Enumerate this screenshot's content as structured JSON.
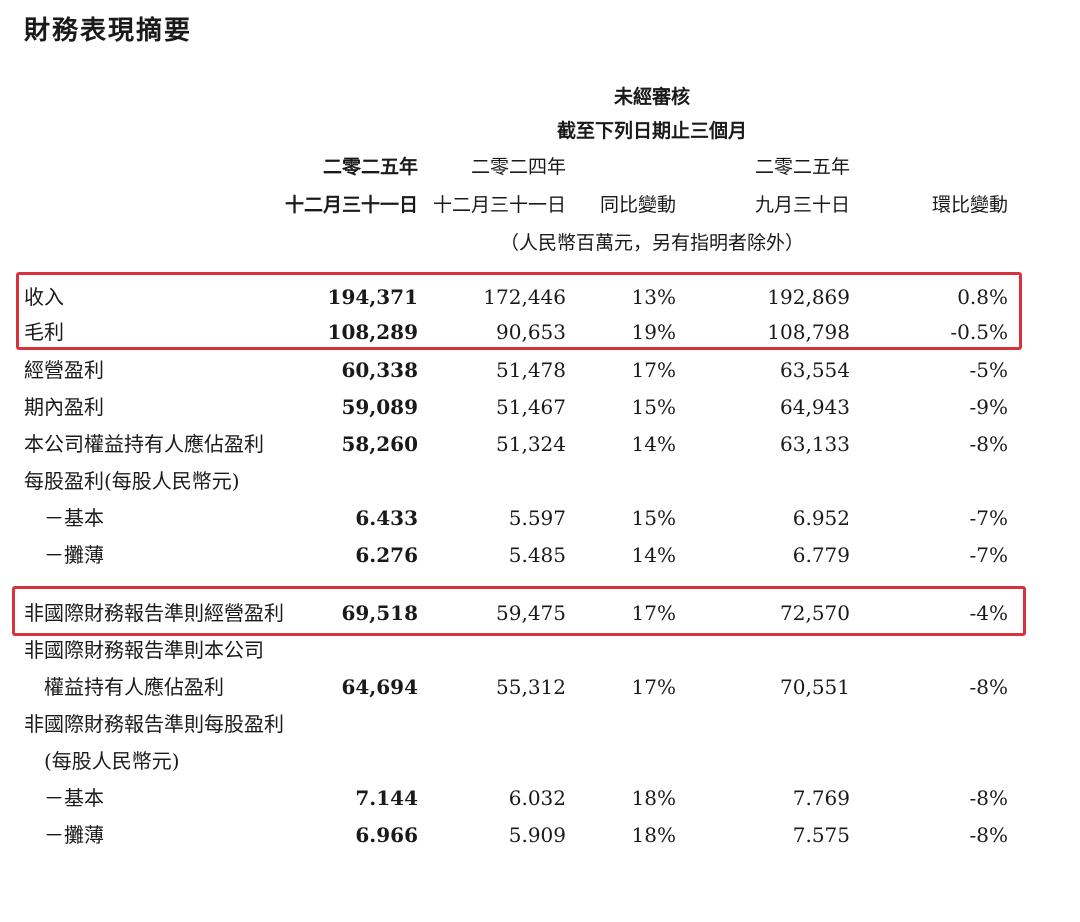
{
  "title": "財務表現摘要",
  "header": {
    "unaudited": "未經審核",
    "period": "截至下列日期止三個月",
    "col1_year": "二零二五年",
    "col1_date": "十二月三十一日",
    "col2_year": "二零二四年",
    "col2_date": "十二月三十一日",
    "col3": "同比變動",
    "col4_year": "二零二五年",
    "col4_date": "九月三十日",
    "col5": "環比變動",
    "unit": "（人民幣百萬元，另有指明者除外）"
  },
  "rows": [
    {
      "label": "收入",
      "c1": "194,371",
      "c2": "172,446",
      "c3": "13%",
      "c4": "192,869",
      "c5": "0.8%"
    },
    {
      "label": "毛利",
      "c1": "108,289",
      "c2": "90,653",
      "c3": "19%",
      "c4": "108,798",
      "c5": "-0.5%"
    },
    {
      "label": "經營盈利",
      "c1": "60,338",
      "c2": "51,478",
      "c3": "17%",
      "c4": "63,554",
      "c5": "-5%"
    },
    {
      "label": "期內盈利",
      "c1": "59,089",
      "c2": "51,467",
      "c3": "15%",
      "c4": "64,943",
      "c5": "-9%"
    },
    {
      "label": "本公司權益持有人應佔盈利",
      "c1": "58,260",
      "c2": "51,324",
      "c3": "14%",
      "c4": "63,133",
      "c5": "-8%"
    },
    {
      "label": "每股盈利(每股人民幣元)",
      "c1": "",
      "c2": "",
      "c3": "",
      "c4": "",
      "c5": ""
    },
    {
      "label": "－基本",
      "c1": "6.433",
      "c2": "5.597",
      "c3": "15%",
      "c4": "6.952",
      "c5": "-7%"
    },
    {
      "label": "－攤薄",
      "c1": "6.276",
      "c2": "5.485",
      "c3": "14%",
      "c4": "6.779",
      "c5": "-7%"
    },
    {
      "label": "非國際財務報告準則經營盈利",
      "c1": "69,518",
      "c2": "59,475",
      "c3": "17%",
      "c4": "72,570",
      "c5": "-4%"
    },
    {
      "label": "非國際財務報告準則本公司",
      "c1": "",
      "c2": "",
      "c3": "",
      "c4": "",
      "c5": ""
    },
    {
      "label": "權益持有人應佔盈利",
      "c1": "64,694",
      "c2": "55,312",
      "c3": "17%",
      "c4": "70,551",
      "c5": "-8%"
    },
    {
      "label": "非國際財務報告準則每股盈利",
      "c1": "",
      "c2": "",
      "c3": "",
      "c4": "",
      "c5": ""
    },
    {
      "label": "(每股人民幣元)",
      "c1": "",
      "c2": "",
      "c3": "",
      "c4": "",
      "c5": ""
    },
    {
      "label": "－基本",
      "c1": "7.144",
      "c2": "6.032",
      "c3": "18%",
      "c4": "7.769",
      "c5": "-8%"
    },
    {
      "label": "－攤薄",
      "c1": "6.966",
      "c2": "5.909",
      "c3": "18%",
      "c4": "7.575",
      "c5": "-8%"
    }
  ],
  "highlight_color": "#d9323e"
}
